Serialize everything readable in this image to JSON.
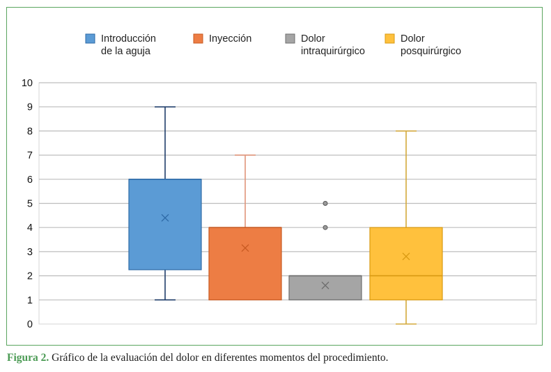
{
  "figure": {
    "caption_label": "Figura 2.",
    "caption_text": " Gráfico de la evaluación del dolor en diferentes momentos del procedimiento."
  },
  "chart_data": {
    "type": "boxplot",
    "title": "",
    "xlabel": "",
    "ylabel": "",
    "ylim": [
      0,
      10
    ],
    "yticks": [
      0,
      1,
      2,
      3,
      4,
      5,
      6,
      7,
      8,
      9,
      10
    ],
    "grid": true,
    "legend_position": "top",
    "series": [
      {
        "name_lines": [
          "Introducción",
          "de la aguja"
        ],
        "color": "#5b9bd5",
        "stroke": "#2e6aa6",
        "whisker_color": "#1f3d6a",
        "min": 1,
        "q1": 2.25,
        "median": 6,
        "q3": 6,
        "max": 9,
        "mean": 4.4,
        "outliers": []
      },
      {
        "name_lines": [
          "Inyección"
        ],
        "color": "#ed7d44",
        "stroke": "#c85a22",
        "whisker_color": "#e0957a",
        "min": 1,
        "q1": 1,
        "median": 4,
        "q3": 4,
        "max": 7,
        "mean": 3.15,
        "outliers": []
      },
      {
        "name_lines": [
          "Dolor",
          "intraquirúrgico"
        ],
        "color": "#a5a5a5",
        "stroke": "#6f6f6f",
        "whisker_color": "#8a8a8a",
        "min": 1,
        "q1": 1,
        "median": 2,
        "q3": 2,
        "max": 2,
        "mean": 1.6,
        "outliers": [
          4,
          5
        ]
      },
      {
        "name_lines": [
          "Dolor",
          "posquirúrgico"
        ],
        "color": "#ffc13d",
        "stroke": "#d99a12",
        "whisker_color": "#d4a83a",
        "min": 0,
        "q1": 1,
        "median": 2,
        "q3": 4,
        "max": 8,
        "mean": 2.8,
        "outliers": []
      }
    ]
  }
}
